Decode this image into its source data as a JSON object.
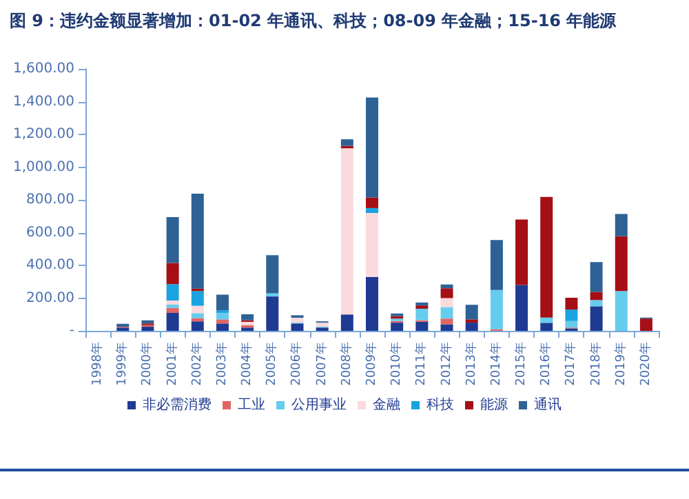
{
  "chart_data": {
    "type": "bar",
    "stacked": true,
    "title": "图 9：违约金额显著增加：01-02 年通讯、科技；08-09 年金融；15-16 年能源",
    "categories": [
      "1998年",
      "1999年",
      "2000年",
      "2001年",
      "2002年",
      "2003年",
      "2004年",
      "2005年",
      "2006年",
      "2007年",
      "2008年",
      "2009年",
      "2010年",
      "2011年",
      "2012年",
      "2013年",
      "2014年",
      "2015年",
      "2016年",
      "2017年",
      "2018年",
      "2019年",
      "2020年"
    ],
    "series": [
      {
        "name": "非必需消费",
        "color": "#1f3a93",
        "values": [
          0,
          20,
          25,
          110,
          58,
          45,
          20,
          210,
          45,
          20,
          100,
          330,
          50,
          55,
          40,
          50,
          0,
          280,
          49,
          15,
          150,
          0,
          0
        ]
      },
      {
        "name": "工业",
        "color": "#e06666",
        "values": [
          0,
          5,
          10,
          30,
          20,
          25,
          15,
          0,
          0,
          0,
          0,
          0,
          10,
          10,
          35,
          0,
          10,
          0,
          0,
          5,
          0,
          0,
          0
        ]
      },
      {
        "name": "公用事业",
        "color": "#66ccee",
        "values": [
          0,
          0,
          0,
          20,
          30,
          40,
          0,
          20,
          5,
          5,
          0,
          0,
          15,
          70,
          70,
          0,
          240,
          0,
          32,
          40,
          38,
          243,
          0
        ]
      },
      {
        "name": "金融",
        "color": "#fadadd",
        "values": [
          0,
          0,
          0,
          25,
          45,
          0,
          20,
          0,
          30,
          25,
          1015,
          390,
          0,
          0,
          55,
          0,
          0,
          0,
          0,
          0,
          0,
          0,
          0
        ]
      },
      {
        "name": "科技",
        "color": "#1aa3e0",
        "values": [
          0,
          0,
          0,
          100,
          90,
          15,
          0,
          0,
          0,
          0,
          0,
          30,
          0,
          0,
          0,
          0,
          0,
          0,
          0,
          70,
          0,
          0,
          0
        ]
      },
      {
        "name": "能源",
        "color": "#a50f15",
        "values": [
          0,
          0,
          10,
          130,
          15,
          0,
          10,
          0,
          0,
          0,
          15,
          65,
          15,
          20,
          60,
          20,
          0,
          400,
          737,
          72,
          49,
          335,
          75
        ]
      },
      {
        "name": "通讯",
        "color": "#2e6295",
        "values": [
          0,
          18,
          19,
          280,
          580,
          96,
          36,
          232,
          15,
          8,
          40,
          610,
          16,
          18,
          23,
          89,
          305,
          0,
          0,
          0,
          183,
          136,
          6
        ]
      }
    ],
    "ylim": [
      0,
      1600
    ],
    "yticks": [
      {
        "value": 0,
        "label": "-"
      },
      {
        "value": 200,
        "label": "200.00"
      },
      {
        "value": 400,
        "label": "400.00"
      },
      {
        "value": 600,
        "label": "600.00"
      },
      {
        "value": 800,
        "label": "800.00"
      },
      {
        "value": 1000,
        "label": "1,000.00"
      },
      {
        "value": 1200,
        "label": "1,200.00"
      },
      {
        "value": 1400,
        "label": "1,400.00"
      },
      {
        "value": 1600,
        "label": "1,600.00"
      }
    ],
    "grid": false,
    "legend": "bottom"
  }
}
